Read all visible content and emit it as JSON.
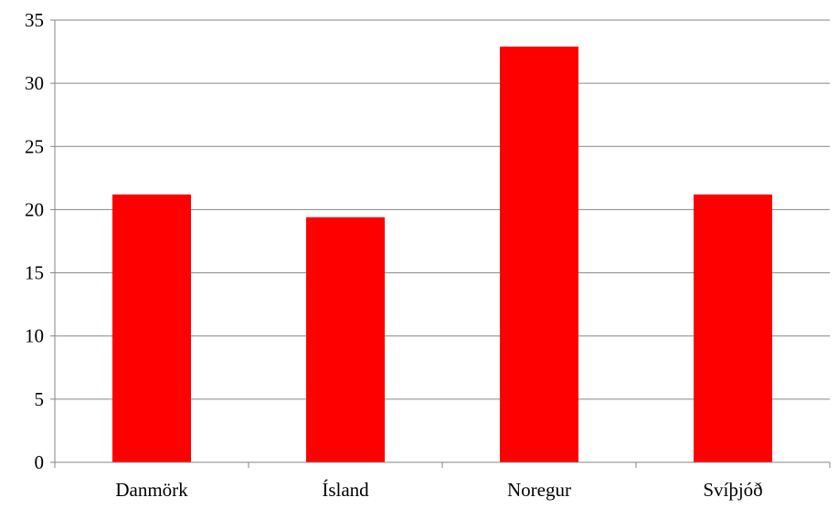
{
  "chart_data": {
    "type": "bar",
    "categories": [
      "Danmörk",
      "Ísland",
      "Noregur",
      "Svíþjóð"
    ],
    "values": [
      21.2,
      19.4,
      32.9,
      21.2
    ],
    "ylim": [
      0,
      35
    ],
    "yticks": [
      0,
      5,
      10,
      15,
      20,
      25,
      30,
      35
    ],
    "grid": true,
    "legend": "none",
    "bar_color": "#ff0000",
    "grid_color": "#868686",
    "axis_color": "#868686"
  }
}
